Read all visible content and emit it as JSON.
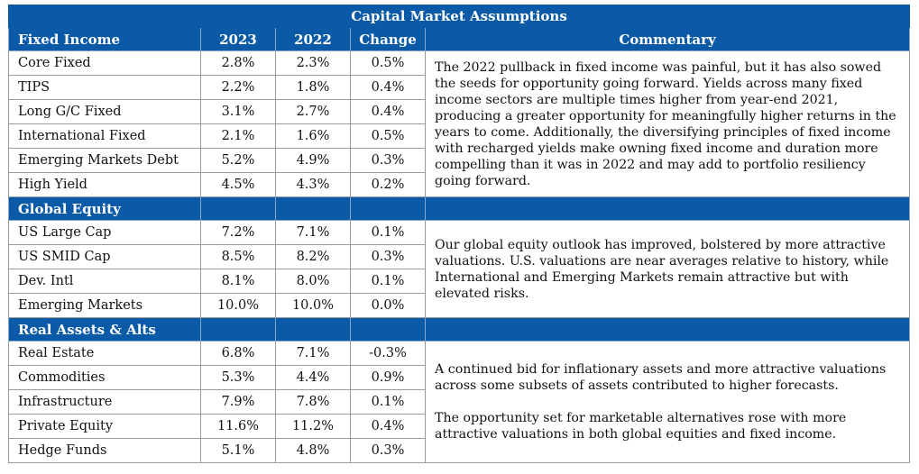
{
  "title": "Capital Market Assumptions",
  "headers": {
    "category": "Fixed Income",
    "y2023": "2023",
    "y2022": "2022",
    "change": "Change",
    "commentary": "Commentary"
  },
  "sections": [
    {
      "name": "Fixed Income",
      "rows": [
        {
          "name": "Core Fixed",
          "y2023": "2.8%",
          "y2022": "2.3%",
          "change": "0.5%"
        },
        {
          "name": "TIPS",
          "y2023": "2.2%",
          "y2022": "1.8%",
          "change": "0.4%"
        },
        {
          "name": "Long G/C Fixed",
          "y2023": "3.1%",
          "y2022": "2.7%",
          "change": "0.4%"
        },
        {
          "name": "International Fixed",
          "y2023": "2.1%",
          "y2022": "1.6%",
          "change": "0.5%"
        },
        {
          "name": "Emerging Markets Debt",
          "y2023": "5.2%",
          "y2022": "4.9%",
          "change": "0.3%"
        },
        {
          "name": "High Yield",
          "y2023": "4.5%",
          "y2022": "4.3%",
          "change": "0.2%"
        }
      ],
      "commentary": [
        "The 2022 pullback in fixed income was painful, but it has also sowed the seeds for opportunity going forward. Yields across many fixed income sectors are multiple times higher from year-end 2021, producing a greater opportunity for meaningfully higher returns in the years to come. Additionally, the diversifying principles of fixed income with recharged yields make owning fixed income and duration more compelling than it was in 2022 and may add to portfolio resiliency going forward."
      ]
    },
    {
      "name": "Global Equity",
      "rows": [
        {
          "name": "US Large Cap",
          "y2023": "7.2%",
          "y2022": "7.1%",
          "change": "0.1%"
        },
        {
          "name": "US SMID Cap",
          "y2023": "8.5%",
          "y2022": "8.2%",
          "change": "0.3%"
        },
        {
          "name": "Dev. Intl",
          "y2023": "8.1%",
          "y2022": "8.0%",
          "change": "0.1%"
        },
        {
          "name": "Emerging Markets",
          "y2023": "10.0%",
          "y2022": "10.0%",
          "change": "0.0%"
        }
      ],
      "commentary": [
        "Our global equity outlook has improved, bolstered by more attractive valuations. U.S. valuations are near averages relative to history, while International and Emerging Markets remain attractive but with elevated risks."
      ]
    },
    {
      "name": "Real Assets & Alts",
      "rows": [
        {
          "name": "Real Estate",
          "y2023": "6.8%",
          "y2022": "7.1%",
          "change": "-0.3%"
        },
        {
          "name": "Commodities",
          "y2023": "5.3%",
          "y2022": "4.4%",
          "change": "0.9%"
        },
        {
          "name": "Infrastructure",
          "y2023": "7.9%",
          "y2022": "7.8%",
          "change": "0.1%"
        },
        {
          "name": "Private Equity",
          "y2023": "11.6%",
          "y2022": "11.2%",
          "change": "0.4%"
        },
        {
          "name": "Hedge Funds",
          "y2023": "5.1%",
          "y2022": "4.8%",
          "change": "0.3%"
        }
      ],
      "commentary": [
        "A continued bid for inflationary assets and more attractive valuations across some subsets of assets contributed to higher forecasts.",
        "The opportunity set for marketable alternatives rose with more attractive valuations in both global equities and fixed income."
      ]
    }
  ]
}
